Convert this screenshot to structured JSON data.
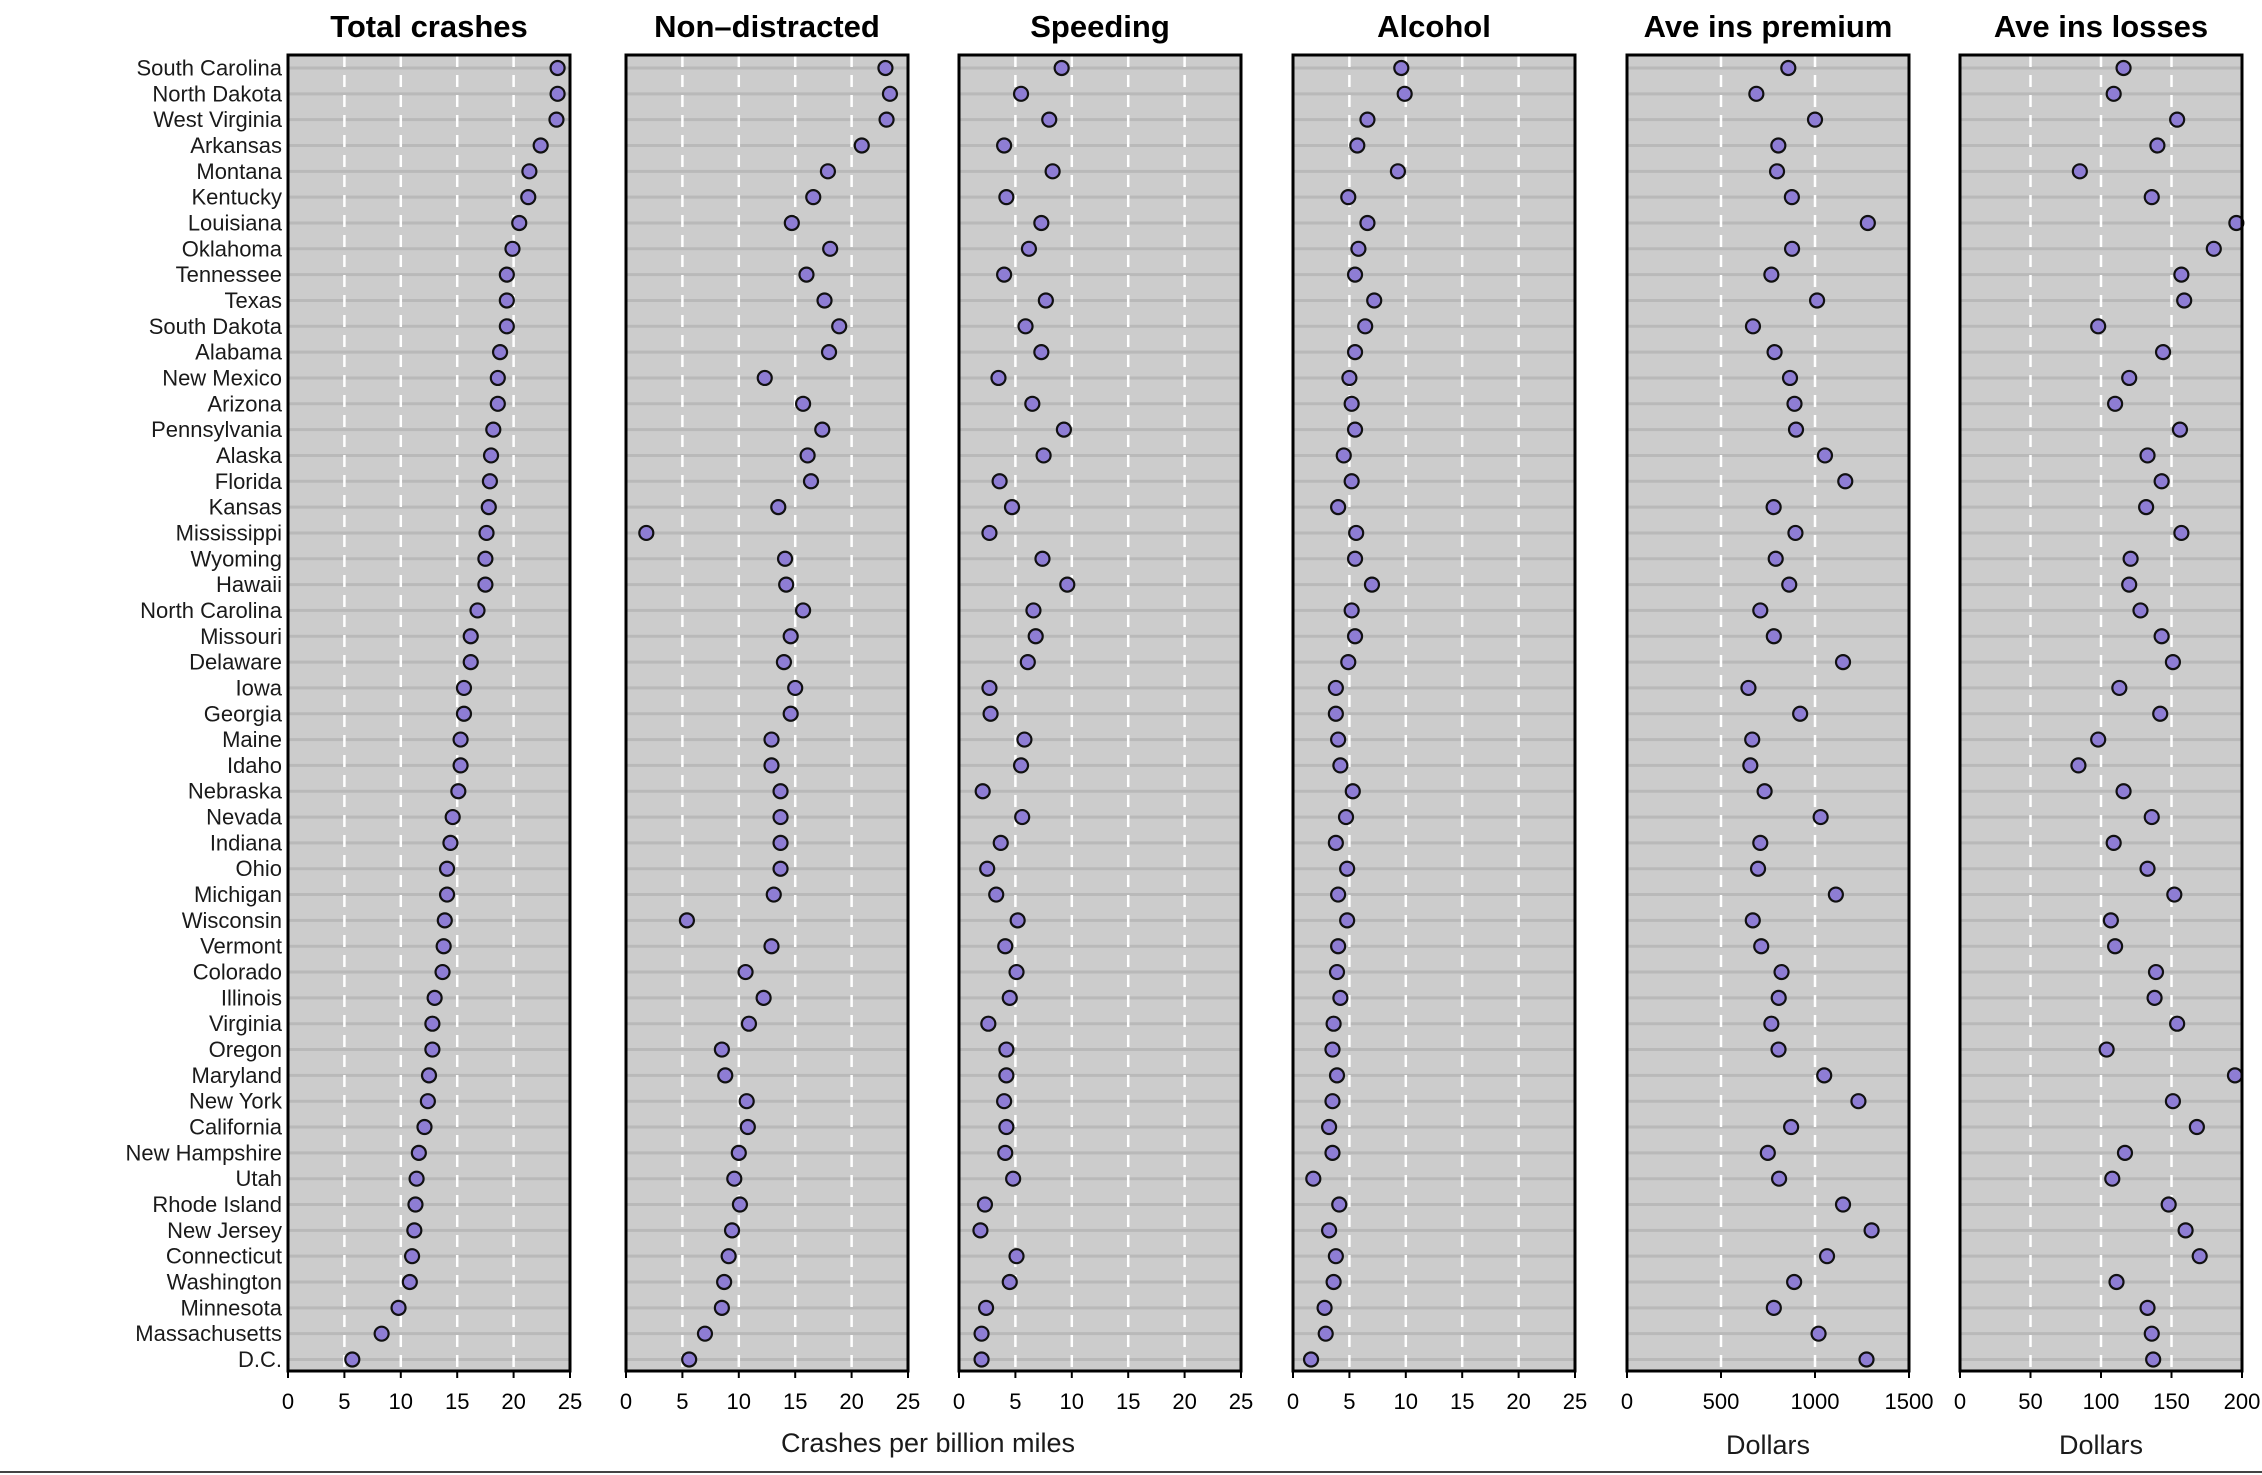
{
  "chart_data": {
    "type": "scatter",
    "layout": "faceted dot plot",
    "states": [
      "South Carolina",
      "North Dakota",
      "West Virginia",
      "Arkansas",
      "Montana",
      "Kentucky",
      "Louisiana",
      "Oklahoma",
      "Tennessee",
      "Texas",
      "South Dakota",
      "Alabama",
      "New Mexico",
      "Arizona",
      "Pennsylvania",
      "Alaska",
      "Florida",
      "Kansas",
      "Mississippi",
      "Wyoming",
      "Hawaii",
      "North Carolina",
      "Missouri",
      "Delaware",
      "Iowa",
      "Georgia",
      "Maine",
      "Idaho",
      "Nebraska",
      "Nevada",
      "Indiana",
      "Ohio",
      "Michigan",
      "Wisconsin",
      "Vermont",
      "Colorado",
      "Illinois",
      "Virginia",
      "Oregon",
      "Maryland",
      "New York",
      "California",
      "New Hampshire",
      "Utah",
      "Rhode Island",
      "New Jersey",
      "Connecticut",
      "Washington",
      "Minnesota",
      "Massachusetts",
      "D.C."
    ],
    "shared_xlabel": "Crashes per billion miles",
    "panels": [
      {
        "title": "Total crashes",
        "xlim": [
          0,
          25
        ],
        "ticks": [
          0,
          5,
          10,
          15,
          20,
          25
        ],
        "xlabel": "",
        "values": [
          23.9,
          23.9,
          23.8,
          22.4,
          21.4,
          21.3,
          20.5,
          19.9,
          19.4,
          19.4,
          19.4,
          18.8,
          18.6,
          18.6,
          18.2,
          18.0,
          17.9,
          17.8,
          17.6,
          17.5,
          17.5,
          16.8,
          16.2,
          16.2,
          15.6,
          15.6,
          15.3,
          15.3,
          15.1,
          14.6,
          14.4,
          14.1,
          14.1,
          13.9,
          13.8,
          13.7,
          13.0,
          12.8,
          12.8,
          12.5,
          12.4,
          12.1,
          11.6,
          11.4,
          11.3,
          11.2,
          11.0,
          10.8,
          9.8,
          8.3,
          5.7
        ]
      },
      {
        "title": "Non–distracted",
        "xlim": [
          0,
          25
        ],
        "ticks": [
          0,
          5,
          10,
          15,
          20,
          25
        ],
        "xlabel": "",
        "values": [
          23.0,
          23.4,
          23.1,
          20.9,
          17.9,
          16.6,
          14.7,
          18.1,
          16.0,
          17.6,
          18.9,
          18.0,
          12.3,
          15.7,
          17.4,
          16.1,
          16.4,
          13.5,
          1.8,
          14.1,
          14.2,
          15.7,
          14.6,
          14.0,
          15.0,
          14.6,
          12.9,
          12.9,
          13.7,
          13.7,
          13.7,
          13.7,
          13.1,
          5.4,
          12.9,
          10.6,
          12.2,
          10.9,
          8.5,
          8.8,
          10.7,
          10.8,
          10.0,
          9.6,
          10.1,
          9.4,
          9.1,
          8.7,
          8.5,
          7.0,
          5.6
        ]
      },
      {
        "title": "Speeding",
        "xlim": [
          0,
          25
        ],
        "ticks": [
          0,
          5,
          10,
          15,
          20,
          25
        ],
        "xlabel": "",
        "values": [
          9.1,
          5.5,
          8.0,
          4.0,
          8.3,
          4.2,
          7.3,
          6.2,
          4.0,
          7.7,
          5.9,
          7.3,
          3.5,
          6.5,
          9.3,
          7.5,
          3.6,
          4.7,
          2.7,
          7.4,
          9.6,
          6.6,
          6.8,
          6.1,
          2.7,
          2.8,
          5.8,
          5.5,
          2.1,
          5.6,
          3.7,
          2.5,
          3.3,
          5.2,
          4.1,
          5.1,
          4.5,
          2.6,
          4.2,
          4.2,
          4.0,
          4.2,
          4.1,
          4.8,
          2.3,
          1.9,
          5.1,
          4.5,
          2.4,
          2.0,
          2.0
        ]
      },
      {
        "title": "Alcohol",
        "xlim": [
          0,
          25
        ],
        "ticks": [
          0,
          5,
          10,
          15,
          20,
          25
        ],
        "xlabel": "",
        "values": [
          9.6,
          9.9,
          6.6,
          5.7,
          9.3,
          4.9,
          6.6,
          5.8,
          5.5,
          7.2,
          6.4,
          5.5,
          5.0,
          5.2,
          5.5,
          4.5,
          5.2,
          4.0,
          5.6,
          5.5,
          7.0,
          5.2,
          5.5,
          4.9,
          3.8,
          3.8,
          4.0,
          4.2,
          5.3,
          4.7,
          3.8,
          4.8,
          4.0,
          4.8,
          4.0,
          3.9,
          4.2,
          3.6,
          3.5,
          3.9,
          3.5,
          3.2,
          3.5,
          1.8,
          4.1,
          3.2,
          3.8,
          3.6,
          2.8,
          2.9,
          1.6
        ]
      },
      {
        "title": "Ave ins premium",
        "xlim": [
          0,
          1500
        ],
        "ticks": [
          0,
          500,
          1000,
          1500
        ],
        "xlabel": "Dollars",
        "values": [
          858,
          688,
          1000,
          805,
          798,
          877,
          1281,
          878,
          768,
          1011,
          670,
          785,
          867,
          891,
          899,
          1053,
          1161,
          780,
          896,
          791,
          863,
          709,
          781,
          1149,
          646,
          921,
          666,
          656,
          732,
          1030,
          709,
          697,
          1111,
          669,
          714,
          822,
          807,
          768,
          806,
          1049,
          1231,
          873,
          749,
          809,
          1149,
          1301,
          1064,
          889,
          781,
          1019,
          1274
        ]
      },
      {
        "title": "Ave ins losses",
        "xlim": [
          0,
          200
        ],
        "ticks": [
          0,
          50,
          100,
          150,
          200
        ],
        "xlabel": "Dollars",
        "values": [
          116,
          109,
          154,
          140,
          85,
          136,
          196,
          180,
          157,
          159,
          98,
          144,
          120,
          110,
          156,
          133,
          143,
          132,
          157,
          121,
          120,
          128,
          143,
          151,
          113,
          142,
          98,
          84,
          116,
          136,
          109,
          133,
          152,
          107,
          110,
          139,
          138,
          154,
          104,
          195,
          151,
          168,
          117,
          108,
          148,
          160,
          170,
          111,
          133,
          136,
          137
        ]
      }
    ]
  }
}
